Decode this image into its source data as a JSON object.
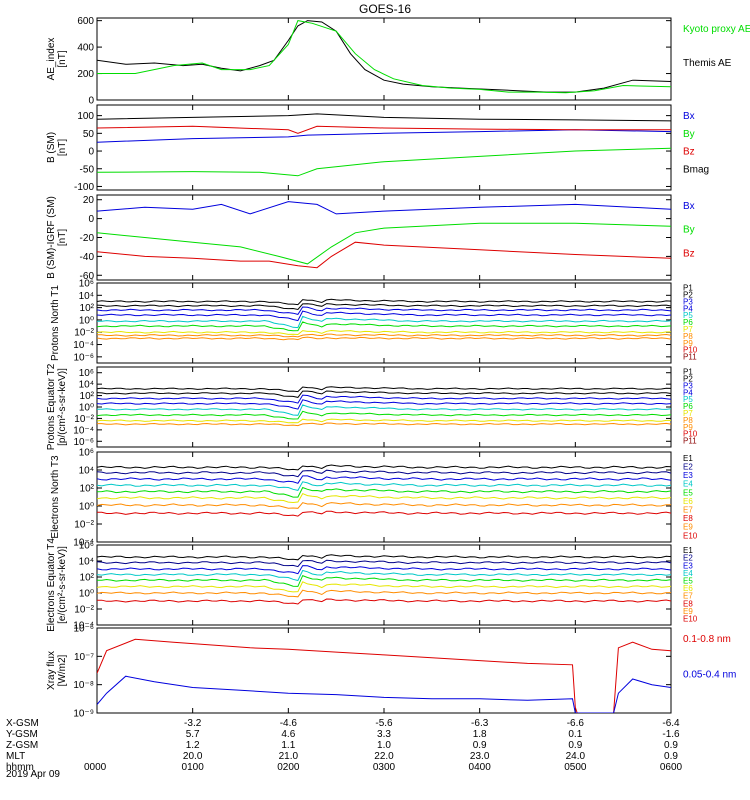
{
  "title": "GOES-16",
  "date": "2019 Apr 09",
  "colors": {
    "black": "#000000",
    "blue": "#0000dd",
    "green": "#00dd00",
    "red": "#dd0000",
    "cyan": "#00c8c8",
    "yellow": "#e6e600",
    "orange": "#ff8c00",
    "darkblue": "#000088",
    "purple": "#7a00a0",
    "maroon": "#8b0000",
    "magenta": "#c000c0"
  },
  "time_axis": {
    "start_hhmm": "0000",
    "end_hhmm": "0600",
    "rows": [
      {
        "label": "X-GSM",
        "values": [
          "",
          "-3.2",
          "-4.6",
          "-5.6",
          "-6.3",
          "-6.6",
          "-6.4"
        ]
      },
      {
        "label": "Y-GSM",
        "values": [
          "",
          "5.7",
          "4.6",
          "3.3",
          "1.8",
          "0.1",
          "-1.6"
        ]
      },
      {
        "label": "Z-GSM",
        "values": [
          "",
          "1.2",
          "1.1",
          "1.0",
          "0.9",
          "0.9",
          "0.9"
        ]
      },
      {
        "label": "MLT",
        "values": [
          "",
          "20.0",
          "21.0",
          "22.0",
          "23.0",
          "24.0",
          "0.9"
        ]
      },
      {
        "label": "hhmm",
        "values": [
          "0000",
          "0100",
          "0200",
          "0300",
          "0400",
          "0500",
          "0600"
        ]
      }
    ]
  },
  "chart_data": [
    {
      "type": "line",
      "ylabel": "AE_index [nT]",
      "ylim": [
        0,
        620
      ],
      "yticks": [
        "0",
        "200",
        "400",
        "600"
      ],
      "ytick_values": [
        0,
        200,
        400,
        600
      ],
      "legend": [
        "Kyoto proxy AE",
        "Themis AE"
      ],
      "series": [
        {
          "name": "Themis AE",
          "color": "#000000",
          "x": [
            0,
            0.3,
            0.6,
            0.9,
            1.1,
            1.3,
            1.5,
            1.7,
            1.85,
            2.0,
            2.1,
            2.2,
            2.35,
            2.5,
            2.65,
            2.8,
            3.0,
            3.2,
            3.5,
            3.8,
            4.1,
            4.4,
            4.7,
            5.0,
            5.3,
            5.6,
            6.0
          ],
          "y": [
            300,
            270,
            280,
            260,
            270,
            240,
            220,
            260,
            300,
            450,
            560,
            600,
            590,
            520,
            350,
            230,
            150,
            120,
            100,
            90,
            80,
            70,
            60,
            60,
            90,
            150,
            140
          ]
        },
        {
          "name": "Kyoto proxy AE",
          "color": "#00dd00",
          "x": [
            0,
            0.4,
            0.8,
            1.1,
            1.3,
            1.6,
            1.8,
            2.0,
            2.1,
            2.25,
            2.5,
            2.7,
            2.9,
            3.1,
            3.4,
            3.7,
            4.0,
            4.3,
            4.6,
            4.9,
            5.2,
            5.5,
            6.0
          ],
          "y": [
            200,
            200,
            260,
            280,
            230,
            230,
            260,
            420,
            600,
            580,
            520,
            350,
            230,
            160,
            110,
            90,
            80,
            60,
            60,
            55,
            70,
            110,
            100
          ]
        }
      ]
    },
    {
      "type": "line",
      "ylabel": "B (SM) [nT]",
      "ylim": [
        -110,
        130
      ],
      "yticks": [
        "-100",
        "-50",
        "0",
        "50",
        "100"
      ],
      "ytick_values": [
        -100,
        -50,
        0,
        50,
        100
      ],
      "legend": [
        "Bx",
        "By",
        "Bz",
        "Bmag"
      ],
      "series": [
        {
          "name": "Bx",
          "color": "#0000dd",
          "x": [
            0,
            1,
            2,
            2.2,
            3,
            4,
            5,
            6
          ],
          "y": [
            25,
            35,
            40,
            45,
            50,
            55,
            60,
            55
          ]
        },
        {
          "name": "By",
          "color": "#00dd00",
          "x": [
            0,
            1,
            1.7,
            2.1,
            2.3,
            3,
            4,
            5,
            6
          ],
          "y": [
            -60,
            -58,
            -60,
            -70,
            -50,
            -30,
            -15,
            0,
            8
          ]
        },
        {
          "name": "Bz",
          "color": "#dd0000",
          "x": [
            0,
            1,
            2,
            2.1,
            2.3,
            3,
            4,
            5,
            6
          ],
          "y": [
            65,
            70,
            60,
            50,
            70,
            65,
            62,
            60,
            60
          ]
        },
        {
          "name": "Bmag",
          "color": "#000000",
          "x": [
            0,
            1,
            2,
            2.3,
            3,
            4,
            5,
            6
          ],
          "y": [
            90,
            95,
            100,
            105,
            95,
            90,
            88,
            85
          ]
        }
      ]
    },
    {
      "type": "line",
      "ylabel": "B (SM)-IGRF (SM) [nT]",
      "ylim": [
        -65,
        25
      ],
      "yticks": [
        "-60",
        "-40",
        "-20",
        "0",
        "20"
      ],
      "ytick_values": [
        -60,
        -40,
        -20,
        0,
        20
      ],
      "legend": [
        "Bx",
        "By",
        "Bz"
      ],
      "series": [
        {
          "name": "Bx",
          "color": "#0000dd",
          "x": [
            0,
            0.5,
            1,
            1.3,
            1.6,
            2.0,
            2.3,
            2.5,
            3,
            4,
            5,
            6
          ],
          "y": [
            8,
            12,
            10,
            15,
            5,
            18,
            15,
            5,
            8,
            12,
            15,
            10
          ]
        },
        {
          "name": "By",
          "color": "#00dd00",
          "x": [
            0,
            0.5,
            1,
            1.5,
            1.9,
            2.2,
            2.45,
            2.7,
            3,
            4,
            5,
            6
          ],
          "y": [
            -15,
            -20,
            -25,
            -30,
            -40,
            -48,
            -30,
            -15,
            -10,
            -5,
            -5,
            -8
          ]
        },
        {
          "name": "Bz",
          "color": "#dd0000",
          "x": [
            0,
            0.5,
            1,
            1.5,
            1.8,
            2.1,
            2.3,
            2.45,
            2.7,
            3,
            4,
            5,
            6
          ],
          "y": [
            -35,
            -40,
            -42,
            -45,
            -45,
            -50,
            -52,
            -40,
            -25,
            -28,
            -33,
            -38,
            -42
          ]
        }
      ]
    },
    {
      "type": "line",
      "ylabel": "Protons North T1",
      "log": true,
      "ylim": [
        -7,
        6
      ],
      "yticks": [
        "10^6",
        "10^4",
        "10^2",
        "10^0",
        "10^-2",
        "10^-4",
        "10^-6"
      ],
      "ytick_values": [
        6,
        4,
        2,
        0,
        -2,
        -4,
        -6
      ],
      "legend": [
        "P1",
        "P2",
        "P3",
        "P4",
        "P5",
        "P6",
        "P7",
        "P8",
        "P9",
        "P10",
        "P11"
      ],
      "series": [
        {
          "name": "P1",
          "color": "#000000",
          "base": 3.0,
          "disturb": 1.0
        },
        {
          "name": "P2",
          "color": "#000000",
          "base": 2.3,
          "disturb": 1.0
        },
        {
          "name": "P3",
          "color": "#0000dd",
          "base": 1.6,
          "disturb": 1.2
        },
        {
          "name": "P4",
          "color": "#0000dd",
          "base": 0.8,
          "disturb": 1.5
        },
        {
          "name": "P5",
          "color": "#00c8c8",
          "base": -0.2,
          "disturb": 1.8
        },
        {
          "name": "P6",
          "color": "#00dd00",
          "base": -1.0,
          "disturb": 1.5
        },
        {
          "name": "P7",
          "color": "#e6e600",
          "base": -2.0,
          "disturb": 0.8
        },
        {
          "name": "P8",
          "color": "#ff8c00",
          "base": -2.5,
          "disturb": 0.4
        },
        {
          "name": "P9",
          "color": "#ff8c00",
          "base": -3.0,
          "disturb": 0.3
        }
      ]
    },
    {
      "type": "line",
      "ylabel": "Protons Equator T2 [p/(cm²-s-sr-keV)]",
      "log": true,
      "ylim": [
        -7,
        7
      ],
      "yticks": [
        "10^6",
        "10^4",
        "10^2",
        "10^0",
        "10^-2",
        "10^-4",
        "10^-6"
      ],
      "ytick_values": [
        6,
        4,
        2,
        0,
        -2,
        -4,
        -6
      ],
      "legend": [
        "P1",
        "P2",
        "P3",
        "P4",
        "P5",
        "P6",
        "P7",
        "P8",
        "P9",
        "P10",
        "P11"
      ],
      "series": [
        {
          "name": "P1",
          "color": "#000000",
          "base": 3.2,
          "disturb": 1.0
        },
        {
          "name": "P2",
          "color": "#000000",
          "base": 2.4,
          "disturb": 1.2
        },
        {
          "name": "P3",
          "color": "#0000dd",
          "base": 1.5,
          "disturb": 1.4
        },
        {
          "name": "P4",
          "color": "#0000dd",
          "base": 0.6,
          "disturb": 1.6
        },
        {
          "name": "P5",
          "color": "#00c8c8",
          "base": -0.4,
          "disturb": 1.8
        },
        {
          "name": "P6",
          "color": "#00dd00",
          "base": -1.4,
          "disturb": 1.4
        },
        {
          "name": "P7",
          "color": "#e6e600",
          "base": -2.4,
          "disturb": 0.8
        },
        {
          "name": "P8",
          "color": "#ff8c00",
          "base": -3.0,
          "disturb": 0.4
        }
      ]
    },
    {
      "type": "line",
      "ylabel": "Electrons North T3",
      "log": true,
      "ylim": [
        -4,
        6
      ],
      "yticks": [
        "10^6",
        "10^4",
        "10^2",
        "10^0",
        "10^-2",
        "10^-4"
      ],
      "ytick_values": [
        6,
        4,
        2,
        0,
        -2,
        -4
      ],
      "legend": [
        "E1",
        "E2",
        "E3",
        "E4",
        "E5",
        "E6",
        "E7",
        "E8",
        "E9",
        "E10"
      ],
      "series": [
        {
          "name": "E1",
          "color": "#000000",
          "base": 4.3,
          "disturb": 0.6
        },
        {
          "name": "E2",
          "color": "#000088",
          "base": 3.7,
          "disturb": 0.7
        },
        {
          "name": "E3",
          "color": "#0000dd",
          "base": 3.0,
          "disturb": 0.8
        },
        {
          "name": "E4",
          "color": "#00c8c8",
          "base": 2.3,
          "disturb": 0.9
        },
        {
          "name": "E5",
          "color": "#00dd00",
          "base": 1.6,
          "disturb": 1.0
        },
        {
          "name": "E6",
          "color": "#e6e600",
          "base": 0.9,
          "disturb": 1.0
        },
        {
          "name": "E7",
          "color": "#ff8c00",
          "base": 0.1,
          "disturb": 0.8
        },
        {
          "name": "E8",
          "color": "#dd0000",
          "base": -0.8,
          "disturb": 0.5
        }
      ]
    },
    {
      "type": "line",
      "ylabel": "Electrons Equator T4 [e/(cm²-s-sr-keV)]",
      "log": true,
      "ylim": [
        -4,
        6
      ],
      "yticks": [
        "10^6",
        "10^4",
        "10^2",
        "10^0",
        "10^-2",
        "10^-4"
      ],
      "ytick_values": [
        6,
        4,
        2,
        0,
        -2,
        -4
      ],
      "legend": [
        "E1",
        "E2",
        "E3",
        "E4",
        "E5",
        "E6",
        "E7",
        "E8",
        "E9",
        "E10"
      ],
      "series": [
        {
          "name": "E1",
          "color": "#000000",
          "base": 4.5,
          "disturb": 0.7
        },
        {
          "name": "E2",
          "color": "#000088",
          "base": 3.8,
          "disturb": 0.8
        },
        {
          "name": "E3",
          "color": "#0000dd",
          "base": 3.0,
          "disturb": 1.0
        },
        {
          "name": "E4",
          "color": "#00c8c8",
          "base": 2.3,
          "disturb": 1.2
        },
        {
          "name": "E5",
          "color": "#00dd00",
          "base": 1.6,
          "disturb": 1.3
        },
        {
          "name": "E6",
          "color": "#e6e600",
          "base": 0.8,
          "disturb": 1.3
        },
        {
          "name": "E7",
          "color": "#ff8c00",
          "base": 0.0,
          "disturb": 1.0
        },
        {
          "name": "E8",
          "color": "#dd0000",
          "base": -1.0,
          "disturb": 0.6
        }
      ]
    },
    {
      "type": "line",
      "ylabel": "Xray flux [W/m2]",
      "log": true,
      "ylim": [
        -9,
        -6
      ],
      "yticks": [
        "10^-6",
        "10^-7",
        "10^-8",
        "10^-9"
      ],
      "ytick_values": [
        -6,
        -7,
        -8,
        -9
      ],
      "legend": [
        "0.1-0.8 nm",
        "0.05-0.4 nm"
      ],
      "series": [
        {
          "name": "0.1-0.8 nm",
          "color": "#dd0000",
          "x": [
            0,
            0.1,
            0.4,
            0.8,
            1.2,
            1.6,
            2.0,
            2.5,
            3.0,
            3.5,
            4.0,
            4.5,
            4.97,
            5.0,
            5.02,
            5.4,
            5.45,
            5.6,
            5.8,
            6.0
          ],
          "y": [
            -7.6,
            -6.8,
            -6.4,
            -6.5,
            -6.6,
            -6.7,
            -6.75,
            -6.85,
            -6.95,
            -7.05,
            -7.15,
            -7.25,
            -7.3,
            -8.8,
            -9.0,
            -9.0,
            -6.7,
            -6.5,
            -6.75,
            -6.8
          ]
        },
        {
          "name": "0.05-0.4 nm",
          "color": "#0000dd",
          "x": [
            0,
            0.1,
            0.3,
            0.6,
            1.0,
            1.5,
            2.0,
            2.5,
            3.0,
            3.5,
            4.0,
            4.5,
            4.97,
            5.0,
            5.02,
            5.4,
            5.45,
            5.6,
            5.8,
            6.0
          ],
          "y": [
            -8.7,
            -8.3,
            -7.7,
            -7.9,
            -8.1,
            -8.2,
            -8.3,
            -8.35,
            -8.45,
            -8.5,
            -8.5,
            -8.55,
            -8.5,
            -9.0,
            -9.0,
            -9.0,
            -8.3,
            -7.8,
            -8.0,
            -8.1
          ]
        }
      ]
    }
  ]
}
